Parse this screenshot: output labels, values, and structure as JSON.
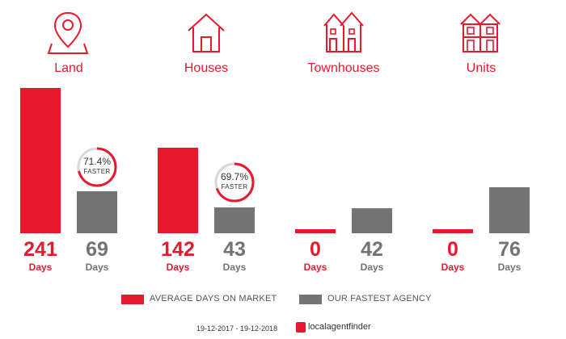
{
  "categories": [
    {
      "label": "Land",
      "icon": "map-pin-icon"
    },
    {
      "label": "Houses",
      "icon": "house-icon"
    },
    {
      "label": "Townhouses",
      "icon": "townhouse-icon"
    },
    {
      "label": "Units",
      "icon": "units-building-icon"
    }
  ],
  "chart_data": {
    "type": "bar",
    "categories": [
      "Land",
      "Houses",
      "Townhouses",
      "Units"
    ],
    "series": [
      {
        "name": "AVERAGE DAYS ON MARKET",
        "values": [
          241,
          142,
          0,
          0
        ],
        "color": "#e8192c"
      },
      {
        "name": "OUR FASTEST AGENCY",
        "values": [
          69,
          43,
          42,
          76
        ],
        "color": "#737373"
      }
    ],
    "value_unit": "Days",
    "badges": [
      {
        "category": "Land",
        "percent": "71.4%",
        "text": "FASTER",
        "fraction": 0.714
      },
      {
        "category": "Houses",
        "percent": "69.7%",
        "text": "FASTER",
        "fraction": 0.697
      }
    ],
    "ylim": [
      0,
      241
    ],
    "legend_position": "bottom"
  },
  "footer": {
    "date_range": "19-12-2017 - 19-12-2018",
    "brand": "localagentfinder"
  },
  "colors": {
    "accent": "#e8192c",
    "neutral": "#737373"
  }
}
